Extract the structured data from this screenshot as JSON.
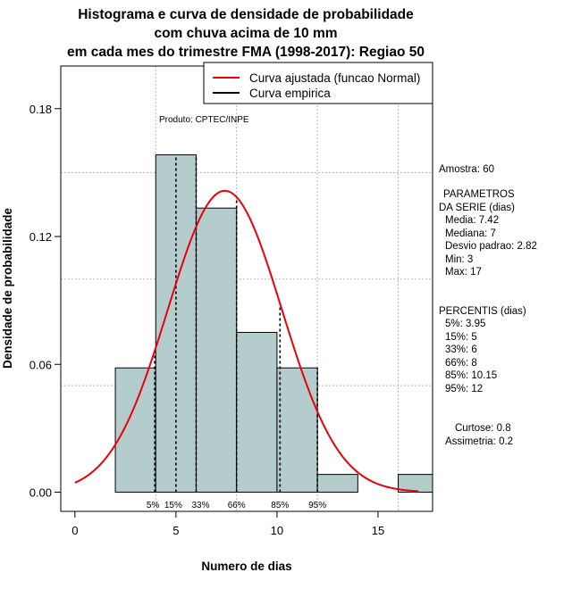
{
  "chart_data": {
    "type": "bar",
    "title_lines": [
      "Histograma e curva de densidade de probabilidade",
      "com chuva acima de 10 mm",
      "em cada mes do trimestre FMA (1998-2017): Regiao 50"
    ],
    "xlabel": "Numero de dias",
    "ylabel": "Densidade de probabilidade",
    "xlim": [
      -0.7,
      17.7
    ],
    "ylim": [
      -0.009,
      0.2
    ],
    "x_ticks": [
      0,
      5,
      10,
      15
    ],
    "y_ticks": [
      0.0,
      0.06,
      0.12,
      0.18
    ],
    "y_tick_labels": [
      "0.00",
      "0.06",
      "0.12",
      "0.18"
    ],
    "grid_y": [
      0.05,
      0.1,
      0.15
    ],
    "grid_x": [
      4,
      8,
      12,
      16
    ],
    "bins": [
      {
        "start": 2,
        "end": 4,
        "density": 0.05833
      },
      {
        "start": 4,
        "end": 6,
        "density": 0.15833
      },
      {
        "start": 6,
        "end": 8,
        "density": 0.13333
      },
      {
        "start": 8,
        "end": 10,
        "density": 0.075
      },
      {
        "start": 10,
        "end": 12,
        "density": 0.05833
      },
      {
        "start": 12,
        "end": 14,
        "density": 0.00833
      },
      {
        "start": 16,
        "end": 18,
        "density": 0.00833
      }
    ],
    "bar_color": "#b4cccb",
    "normal_curve": {
      "mean": 7.42,
      "sd": 2.82,
      "color": "#e8000b"
    },
    "percentile_lines": [
      {
        "label": "5%",
        "x": 3.95
      },
      {
        "label": "15%",
        "x": 5
      },
      {
        "label": "33%",
        "x": 6
      },
      {
        "label": "66%",
        "x": 8
      },
      {
        "label": "85%",
        "x": 10.15
      },
      {
        "label": "95%",
        "x": 12
      }
    ],
    "legend": {
      "position": "top-right",
      "entries": [
        {
          "label": "Curva ajustada (funcao Normal)",
          "color": "#e8000b"
        },
        {
          "label": "Curva empirica",
          "color": "#000000"
        }
      ]
    },
    "annotation": "Produto: CPTEC/INPE"
  },
  "side_panel": {
    "sample": "Amostra: 60",
    "params_lines": [
      "PARAMETROS",
      "DA SERIE (dias)"
    ],
    "stats": [
      "Media: 7.42",
      "Mediana: 7",
      "Desvio padrao: 2.82",
      "Min: 3",
      "Max: 17"
    ],
    "percentis_title": "PERCENTIS (dias)",
    "percentis": [
      "5%: 3.95",
      "15%: 5",
      "33%: 6",
      "66%: 8",
      "85%: 10.15",
      "95%: 12"
    ],
    "curtose": "Curtose: 0.8",
    "assimetria": "Assimetria: 0.2"
  }
}
